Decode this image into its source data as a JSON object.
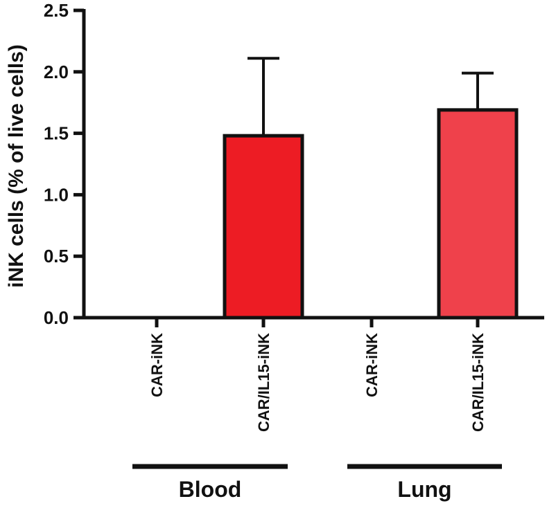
{
  "chart_data": {
    "type": "bar",
    "ylabel": "iNK cells (% of live cells)",
    "ylim": [
      0,
      2.5
    ],
    "yticks": [
      "0.0",
      "0.5",
      "1.0",
      "1.5",
      "2.0",
      "2.5"
    ],
    "categories": [
      "CAR-iNK",
      "CAR/IL15-iNK",
      "CAR-iNK",
      "CAR/IL15-iNK"
    ],
    "values": [
      0,
      1.48,
      0,
      1.69
    ],
    "error_upper": [
      0,
      2.11,
      0,
      1.99
    ],
    "bar_colors": [
      "#ED1C24",
      "#ED1C24",
      "#EF414B",
      "#EF414B"
    ],
    "groups": [
      {
        "label": "Blood",
        "categories": [
          0,
          1
        ]
      },
      {
        "label": "Lung",
        "categories": [
          2,
          3
        ]
      }
    ],
    "grid": false,
    "legend": "none"
  }
}
